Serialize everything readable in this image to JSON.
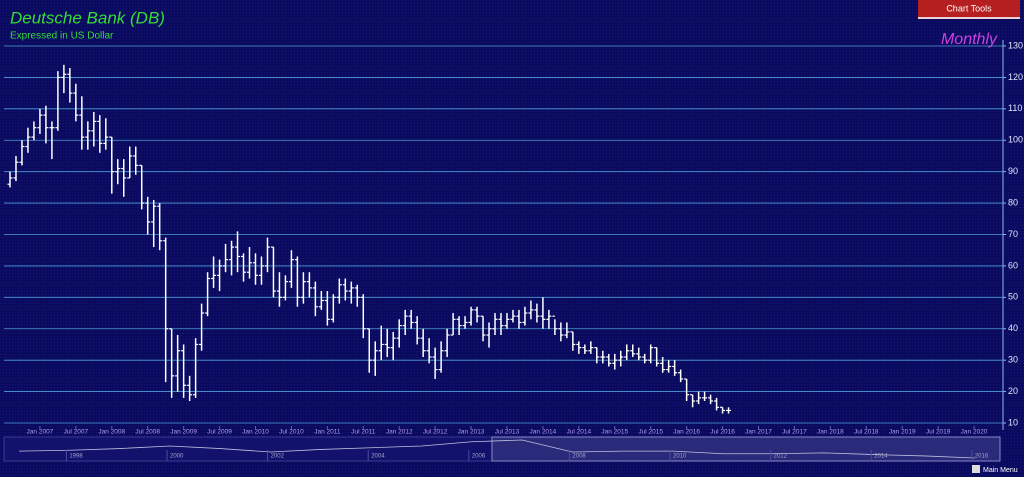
{
  "chart_data": {
    "type": "ohlc",
    "title": "Deutsche Bank (DB)",
    "subtitle": "Expressed in US Dollar",
    "period": "Monthly",
    "x": [
      "Aug 2006",
      "Sep 2006",
      "Oct 2006",
      "Nov 2006",
      "Dec 2006",
      "Jan 2007",
      "Feb 2007",
      "Mar 2007",
      "Apr 2007",
      "May 2007",
      "Jun 2007",
      "Jul 2007",
      "Aug 2007",
      "Sep 2007",
      "Oct 2007",
      "Nov 2007",
      "Dec 2007",
      "Jan 2008",
      "Feb 2008",
      "Mar 2008",
      "Apr 2008",
      "May 2008",
      "Jun 2008",
      "Jul 2008",
      "Aug 2008",
      "Sep 2008",
      "Oct 2008",
      "Nov 2008",
      "Dec 2008",
      "Jan 2009",
      "Feb 2009",
      "Mar 2009",
      "Apr 2009",
      "May 2009",
      "Jun 2009",
      "Jul 2009",
      "Aug 2009",
      "Sep 2009",
      "Oct 2009",
      "Nov 2009",
      "Dec 2009",
      "Jan 2010",
      "Feb 2010",
      "Mar 2010",
      "Apr 2010",
      "May 2010",
      "Jun 2010",
      "Jul 2010",
      "Aug 2010",
      "Sep 2010",
      "Oct 2010",
      "Nov 2010",
      "Dec 2010",
      "Jan 2011",
      "Feb 2011",
      "Mar 2011",
      "Apr 2011",
      "May 2011",
      "Jun 2011",
      "Jul 2011",
      "Aug 2011",
      "Sep 2011",
      "Oct 2011",
      "Nov 2011",
      "Dec 2011",
      "Jan 2012",
      "Feb 2012",
      "Mar 2012",
      "Apr 2012",
      "May 2012",
      "Jun 2012",
      "Jul 2012",
      "Aug 2012",
      "Sep 2012",
      "Oct 2012",
      "Nov 2012",
      "Dec 2012",
      "Jan 2013",
      "Feb 2013",
      "Mar 2013",
      "Apr 2013",
      "May 2013",
      "Jun 2013",
      "Jul 2013",
      "Aug 2013",
      "Sep 2013",
      "Oct 2013",
      "Nov 2013",
      "Dec 2013",
      "Jan 2014",
      "Feb 2014",
      "Mar 2014",
      "Apr 2014",
      "May 2014",
      "Jun 2014",
      "Jul 2014",
      "Aug 2014",
      "Sep 2014",
      "Oct 2014",
      "Nov 2014",
      "Dec 2014",
      "Jan 2015",
      "Feb 2015",
      "Mar 2015",
      "Apr 2015",
      "May 2015",
      "Jun 2015",
      "Jul 2015",
      "Aug 2015",
      "Sep 2015",
      "Oct 2015",
      "Nov 2015",
      "Dec 2015",
      "Jan 2016",
      "Feb 2016",
      "Mar 2016",
      "Apr 2016",
      "May 2016",
      "Jun 2016",
      "Jul 2016",
      "Aug 2016"
    ],
    "open": [
      86,
      88,
      93,
      98,
      101,
      104,
      108,
      104,
      104,
      120,
      121,
      115,
      108,
      101,
      103,
      106,
      99,
      101,
      90,
      91,
      88,
      95,
      92,
      80,
      74,
      79,
      68,
      40,
      25,
      33,
      22,
      19,
      35,
      45,
      56,
      57,
      60,
      62,
      66,
      63,
      58,
      61,
      57,
      60,
      66,
      52,
      50,
      55,
      62,
      50,
      55,
      53,
      47,
      49,
      43,
      50,
      54,
      52,
      53,
      50,
      40,
      30,
      33,
      35,
      34,
      37,
      41,
      44,
      42,
      37,
      33,
      31,
      27,
      33,
      38,
      43,
      41,
      42,
      46,
      44,
      38,
      40,
      43,
      41,
      43,
      44,
      42,
      45,
      46,
      44,
      43,
      44,
      40,
      38,
      39,
      35,
      34,
      33,
      34,
      31,
      31,
      29,
      30,
      31,
      33,
      32,
      31,
      30,
      34,
      29,
      27,
      28,
      26,
      24,
      19,
      17,
      18,
      18,
      17,
      15,
      14
    ],
    "high": [
      90,
      95,
      100,
      104,
      106,
      110,
      111,
      106,
      122,
      124,
      123,
      118,
      114,
      106,
      109,
      108,
      107,
      101,
      94,
      94,
      98,
      98,
      92,
      82,
      81,
      80,
      69,
      40,
      38,
      35,
      25,
      37,
      48,
      58,
      63,
      62,
      67,
      68,
      71,
      64,
      66,
      64,
      63,
      69,
      66,
      58,
      57,
      65,
      63,
      58,
      58,
      55,
      52,
      52,
      51,
      56,
      56,
      55,
      54,
      51,
      40,
      36,
      41,
      40,
      39,
      43,
      46,
      46,
      44,
      40,
      37,
      34,
      36,
      40,
      45,
      44,
      44,
      47,
      47,
      44,
      42,
      45,
      45,
      45,
      46,
      46,
      47,
      49,
      48,
      50,
      46,
      43,
      42,
      42,
      39,
      36,
      35,
      36,
      34,
      33,
      32,
      32,
      33,
      35,
      35,
      34,
      32,
      35,
      34,
      31,
      30,
      30,
      27,
      24,
      19,
      20,
      20,
      19,
      18,
      15,
      15
    ],
    "low": [
      85,
      87,
      92,
      96,
      100,
      102,
      99,
      94,
      103,
      115,
      112,
      106,
      97,
      97,
      98,
      96,
      97,
      83,
      86,
      82,
      88,
      89,
      78,
      70,
      66,
      65,
      23,
      18,
      20,
      18,
      17,
      18,
      33,
      44,
      53,
      52,
      58,
      57,
      58,
      55,
      56,
      54,
      54,
      58,
      50,
      47,
      49,
      53,
      47,
      48,
      50,
      44,
      46,
      41,
      42,
      48,
      49,
      48,
      47,
      37,
      26,
      25,
      30,
      31,
      30,
      34,
      38,
      40,
      35,
      31,
      29,
      24,
      26,
      31,
      38,
      38,
      40,
      41,
      42,
      36,
      34,
      38,
      38,
      40,
      42,
      40,
      41,
      43,
      42,
      40,
      40,
      38,
      36,
      37,
      33,
      32,
      32,
      32,
      29,
      29,
      28,
      27,
      28,
      30,
      31,
      30,
      29,
      29,
      28,
      26,
      26,
      25,
      23,
      17,
      15,
      16,
      17,
      16,
      14,
      13,
      13
    ],
    "close": [
      88,
      93,
      98,
      101,
      104,
      108,
      104,
      104,
      120,
      121,
      115,
      108,
      101,
      103,
      106,
      99,
      101,
      90,
      91,
      88,
      95,
      92,
      80,
      74,
      79,
      68,
      40,
      25,
      33,
      22,
      19,
      35,
      45,
      56,
      57,
      60,
      62,
      66,
      63,
      58,
      61,
      57,
      60,
      66,
      52,
      50,
      55,
      62,
      50,
      55,
      53,
      47,
      49,
      43,
      50,
      54,
      52,
      53,
      50,
      40,
      30,
      33,
      35,
      34,
      37,
      41,
      44,
      42,
      37,
      33,
      31,
      27,
      33,
      38,
      43,
      41,
      42,
      46,
      44,
      38,
      40,
      43,
      41,
      43,
      44,
      42,
      45,
      46,
      44,
      43,
      44,
      40,
      38,
      39,
      35,
      34,
      33,
      34,
      31,
      31,
      29,
      30,
      31,
      33,
      32,
      31,
      30,
      34,
      29,
      27,
      28,
      26,
      24,
      19,
      17,
      18,
      18,
      17,
      15,
      14,
      14
    ],
    "color": "#ffffff",
    "xlim": [
      "Jul 2006",
      "May 2020"
    ],
    "xticks": [
      "Jan 2007",
      "Jul 2007",
      "Jan 2008",
      "Jul 2008",
      "Jan 2009",
      "Jul 2009",
      "Jan 2010",
      "Jul 2010",
      "Jan 2011",
      "Jul 2011",
      "Jan 2012",
      "Jul 2012",
      "Jan 2013",
      "Jul 2013",
      "Jan 2014",
      "Jul 2014",
      "Jan 2015",
      "Jul 2015",
      "Jan 2016",
      "Jul 2016",
      "Jan 2017",
      "Jul 2017",
      "Jan 2018",
      "Jul 2018",
      "Jan 2019",
      "Jul 2019",
      "Jan 2020"
    ],
    "ylim": [
      10,
      130
    ],
    "yticks": [
      10,
      20,
      30,
      40,
      50,
      60,
      70,
      80,
      90,
      100,
      110,
      120,
      130
    ],
    "grid": true,
    "navigator": {
      "years": [
        1997,
        1998,
        1999,
        2000,
        2001,
        2002,
        2003,
        2004,
        2005,
        2006,
        2007,
        2008,
        2009,
        2010,
        2011,
        2012,
        2013,
        2014,
        2015,
        2016
      ],
      "values": [
        55,
        60,
        70,
        85,
        70,
        50,
        65,
        75,
        85,
        110,
        120,
        50,
        55,
        55,
        40,
        40,
        45,
        35,
        27,
        15
      ],
      "xlim": [
        1996.7,
        2016.5
      ],
      "xticks": [
        1998,
        2000,
        2002,
        2004,
        2006,
        2008,
        2010,
        2012,
        2014,
        2016
      ],
      "selection": [
        2006.4,
        2016.5
      ]
    }
  },
  "ui": {
    "chart_tools": "Chart Tools",
    "main_menu": "Main Menu"
  }
}
